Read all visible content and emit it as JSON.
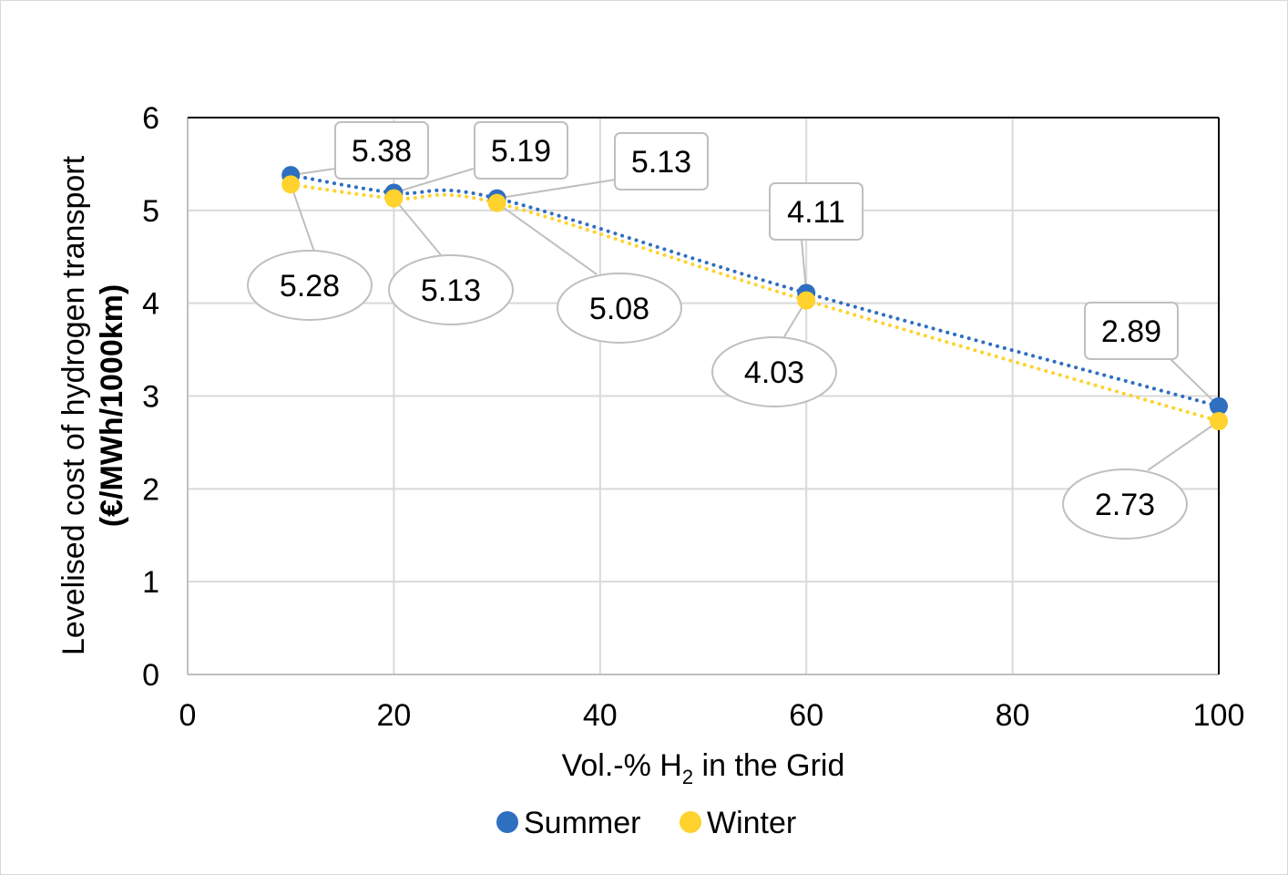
{
  "chart_data": {
    "type": "scatter",
    "title": "",
    "xlabel": "Vol.-% H",
    "xlabel_subscript": "2",
    "xlabel_suffix": " in the Grid",
    "ylabel": "Levelised cost of hydrogen transport",
    "ylabel_unit": "(€/MWh/1000km)",
    "xlim": [
      0,
      100
    ],
    "ylim": [
      0,
      6
    ],
    "xticks": [
      "0",
      "20",
      "40",
      "60",
      "80",
      "100"
    ],
    "yticks": [
      "0",
      "1",
      "2",
      "3",
      "4",
      "5",
      "6"
    ],
    "grid": true,
    "legend_position": "bottom",
    "trendline": "dotted",
    "series": [
      {
        "name": "Summer",
        "color": "#2e6fc0",
        "label_shape": "rectangle",
        "x": [
          10,
          20,
          30,
          60,
          100
        ],
        "y": [
          5.38,
          5.19,
          5.13,
          4.11,
          2.89
        ],
        "labels": [
          "5.38",
          "5.19",
          "5.13",
          "4.11",
          "2.89"
        ]
      },
      {
        "name": "Winter",
        "color": "#ffd22e",
        "label_shape": "ellipse",
        "x": [
          10,
          20,
          30,
          60,
          100
        ],
        "y": [
          5.28,
          5.13,
          5.08,
          4.03,
          2.73
        ],
        "labels": [
          "5.28",
          "5.13",
          "5.08",
          "4.03",
          "2.73"
        ]
      }
    ]
  }
}
